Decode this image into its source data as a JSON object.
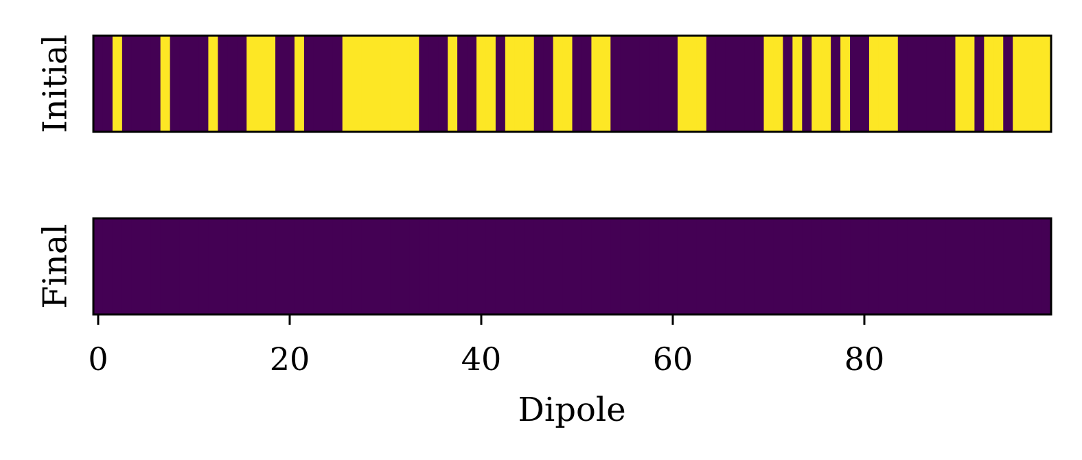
{
  "chart_data": {
    "type": "heatmap",
    "xlabel": "Dipole",
    "xlim": [
      -0.5,
      99.5
    ],
    "x_ticks": [
      0,
      20,
      40,
      60,
      80
    ],
    "x_tick_labels": [
      "0",
      "20",
      "40",
      "60",
      "80"
    ],
    "colormap": "viridis",
    "colors": {
      "0": "#440154",
      "1": "#fde725"
    },
    "rows": [
      {
        "label": "Initial",
        "values": [
          0,
          0,
          1,
          0,
          0,
          0,
          0,
          1,
          0,
          0,
          0,
          0,
          1,
          0,
          0,
          0,
          1,
          1,
          1,
          0,
          0,
          1,
          0,
          0,
          0,
          0,
          1,
          1,
          1,
          1,
          1,
          1,
          1,
          1,
          0,
          0,
          0,
          1,
          0,
          0,
          1,
          1,
          0,
          1,
          1,
          1,
          0,
          0,
          1,
          1,
          0,
          0,
          1,
          1,
          0,
          0,
          0,
          0,
          0,
          0,
          0,
          1,
          1,
          1,
          0,
          0,
          0,
          0,
          0,
          0,
          1,
          1,
          0,
          1,
          0,
          1,
          1,
          0,
          1,
          0,
          0,
          1,
          1,
          1,
          0,
          0,
          0,
          0,
          0,
          0,
          1,
          1,
          0,
          1,
          1,
          0,
          1,
          1,
          1,
          1
        ]
      },
      {
        "label": "Final",
        "values": [
          0,
          0,
          0,
          0,
          0,
          0,
          0,
          0,
          0,
          0,
          0,
          0,
          0,
          0,
          0,
          0,
          0,
          0,
          0,
          0,
          0,
          0,
          0,
          0,
          0,
          0,
          0,
          0,
          0,
          0,
          0,
          0,
          0,
          0,
          0,
          0,
          0,
          0,
          0,
          0,
          0,
          0,
          0,
          0,
          0,
          0,
          0,
          0,
          0,
          0,
          0,
          0,
          0,
          0,
          0,
          0,
          0,
          0,
          0,
          0,
          0,
          0,
          0,
          0,
          0,
          0,
          0,
          0,
          0,
          0,
          0,
          0,
          0,
          0,
          0,
          0,
          0,
          0,
          0,
          0,
          0,
          0,
          0,
          0,
          0,
          0,
          0,
          0,
          0,
          0,
          0,
          0,
          0,
          0,
          0,
          0,
          0,
          0,
          0,
          0
        ]
      }
    ]
  }
}
